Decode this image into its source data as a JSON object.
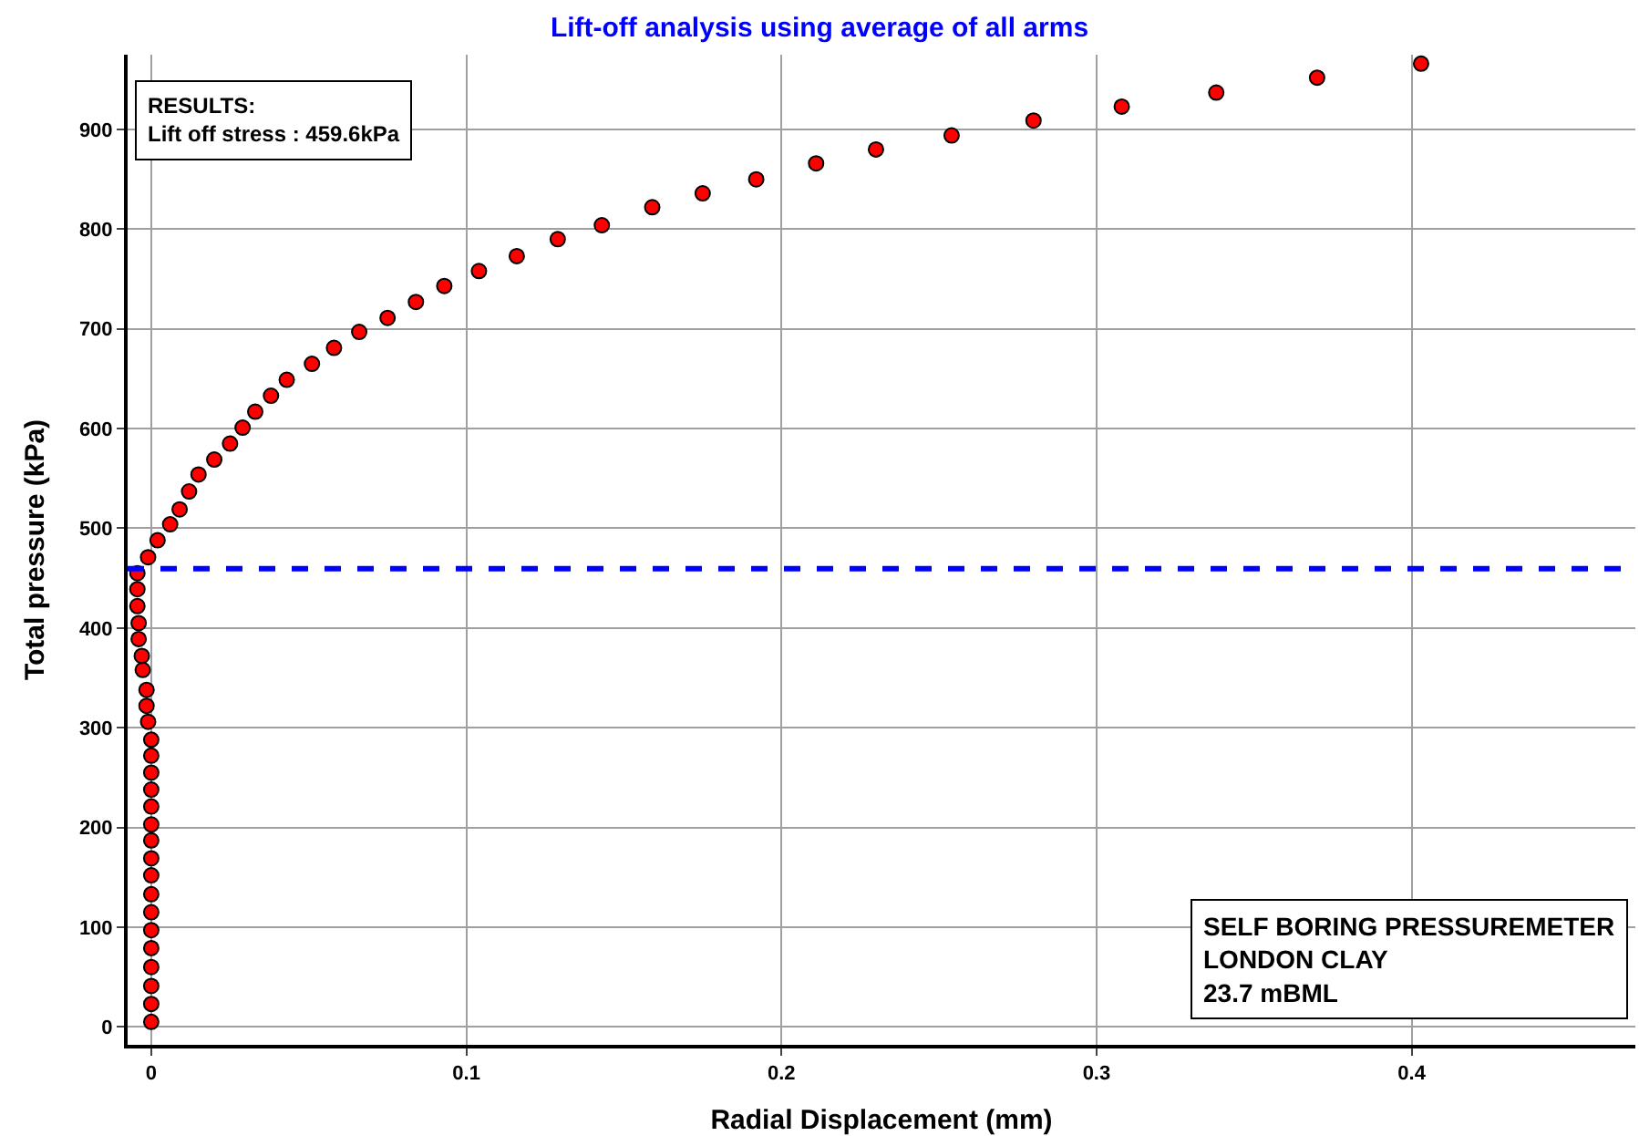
{
  "chart_data": {
    "type": "scatter",
    "title": "Lift-off analysis using average of all arms",
    "xlabel": "Radial Displacement (mm)",
    "ylabel": "Total pressure (kPa)",
    "annotations": [
      "RESULTS:\nLift off stress : 459.6kPa",
      "SELF BORING PRESSUREMETER\nLONDON CLAY\n23.7 mBML"
    ],
    "xlim": [
      -0.0075,
      0.471
    ],
    "ylim": [
      -18,
      975
    ],
    "xticks": [
      0,
      0.1,
      0.2,
      0.3,
      0.4
    ],
    "yticks": [
      0,
      100,
      200,
      300,
      400,
      500,
      600,
      700,
      800,
      900
    ],
    "grid": true,
    "marker": "circle",
    "ref_lines": [
      {
        "axis": "y",
        "value": 459.6,
        "color": "#0000ff",
        "line_style": "dashed"
      }
    ],
    "series": [
      {
        "color": "#ff0000",
        "x": [
          0,
          0,
          0,
          0,
          0,
          0,
          0,
          0,
          0,
          0,
          0,
          0,
          0,
          0,
          0,
          0,
          0,
          -0.001,
          -0.0015,
          -0.0015,
          -0.0027,
          -0.003,
          -0.004,
          -0.004,
          -0.0044,
          -0.0044,
          -0.0044,
          -0.001,
          0.002,
          0.006,
          0.009,
          0.012,
          0.015,
          0.02,
          0.025,
          0.029,
          0.033,
          0.038,
          0.043,
          0.051,
          0.058,
          0.066,
          0.075,
          0.084,
          0.093,
          0.104,
          0.116,
          0.129,
          0.143,
          0.159,
          0.175,
          0.192,
          0.211,
          0.23,
          0.254,
          0.28,
          0.308,
          0.338,
          0.37,
          0.403
        ],
        "values": [
          5,
          23,
          41,
          60,
          79,
          97,
          115,
          133,
          152,
          169,
          187,
          203,
          221,
          238,
          255,
          272,
          288,
          306,
          322,
          338,
          358,
          372,
          389,
          405,
          422,
          439,
          455,
          471,
          488,
          504,
          519,
          537,
          554,
          569,
          585,
          601,
          617,
          633,
          649,
          665,
          681,
          697,
          711,
          727,
          743,
          758,
          773,
          790,
          804,
          822,
          836,
          850,
          866,
          880,
          894,
          909,
          923,
          937,
          952,
          966
        ]
      }
    ]
  }
}
